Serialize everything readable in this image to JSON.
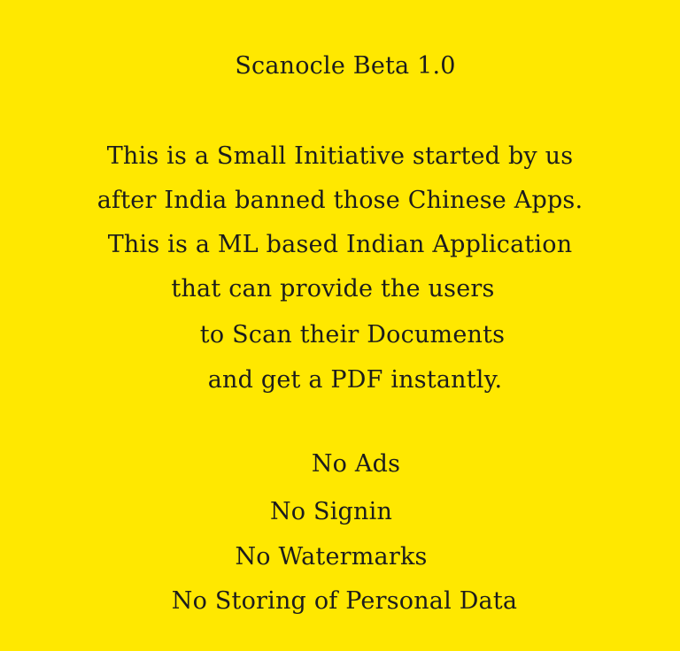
{
  "app": {
    "title": "Scanocle Beta 1.0"
  },
  "about": {
    "lines": [
      "This is a Small Initiative started by us",
      "after India banned those Chinese Apps.",
      "This is a ML based Indian Application",
      "that can provide the users",
      "to Scan their Documents",
      "and get a PDF instantly."
    ]
  },
  "features": {
    "items": [
      "No Ads",
      "No Signin",
      "No Watermarks",
      "No Storing of Personal Data"
    ]
  },
  "colors": {
    "background": "#ffe800",
    "text": "#1c1c1c"
  }
}
